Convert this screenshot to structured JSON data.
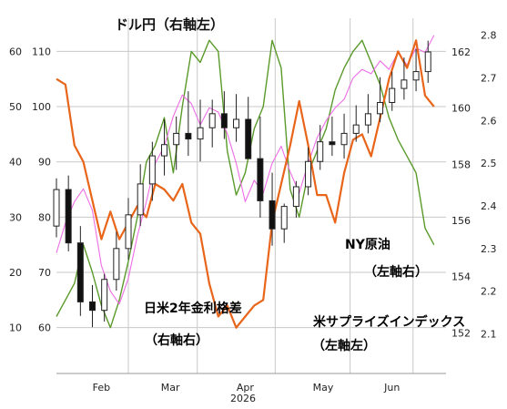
{
  "chart_data": {
    "type": "line",
    "title": "ドル円（右軸左）",
    "x_year_label": "2026",
    "x_tick_labels": [
      "Feb",
      "Mar",
      "Apr",
      "May",
      "Jun"
    ],
    "axes": {
      "left_outer": {
        "ticks": [
          "60",
          "50",
          "40",
          "30",
          "20",
          "10"
        ],
        "ylim": [
          5,
          66
        ]
      },
      "left_inner": {
        "ticks": [
          "110",
          "100",
          "90",
          "80",
          "70",
          "60"
        ],
        "ylim": [
          55,
          116
        ]
      },
      "right_inner": {
        "ticks": [
          "162",
          "160",
          "158",
          "156",
          "154",
          "152"
        ],
        "ylim": [
          151.2,
          163.2
        ]
      },
      "right_outer": {
        "ticks": [
          "2.8",
          "2.7",
          "2.6",
          "2.5",
          "2.4",
          "2.3",
          "2.2",
          "2.1"
        ],
        "ylim": [
          2.05,
          2.84
        ]
      }
    },
    "grid": true,
    "annotations": {
      "wti": {
        "line1": "NY原油",
        "line2": "（左軸右）",
        "color": "#5a9a2a"
      },
      "spread": {
        "line1": "日米2年金利格差",
        "line2": "（右軸右）",
        "color": "#ee6de6"
      },
      "surprise": {
        "line1": "米サプライズインデックス",
        "line2": "（左軸左）",
        "color": "#e8651a"
      }
    },
    "series": [
      {
        "axis": "left_inner",
        "color": "#5a9a2a",
        "x": [
          0,
          3,
          6,
          9,
          12,
          15,
          18,
          21,
          24,
          27,
          30,
          33,
          36,
          39,
          42,
          45,
          48,
          51,
          54,
          57,
          60,
          63,
          66,
          69,
          72,
          75,
          78,
          81,
          84,
          87,
          90,
          93,
          96,
          99,
          102,
          105,
          108,
          111,
          114,
          117,
          120,
          123,
          126
        ],
        "values": [
          62,
          65,
          68,
          75,
          70,
          64,
          60,
          65,
          72,
          80,
          90,
          93,
          98,
          88,
          100,
          110,
          108,
          112,
          110,
          92,
          84,
          88,
          96,
          100,
          112,
          107,
          85,
          80,
          88,
          92,
          96,
          103,
          107,
          110,
          112,
          108,
          104,
          98,
          94,
          91,
          88,
          78,
          75
        ]
      },
      {
        "axis": "right_outer",
        "color": "#ee6de6",
        "x": [
          0,
          3,
          6,
          9,
          12,
          15,
          18,
          21,
          24,
          27,
          30,
          33,
          36,
          39,
          42,
          45,
          48,
          51,
          54,
          57,
          60,
          63,
          66,
          69,
          72,
          75,
          78,
          81,
          84,
          87,
          90,
          93,
          96,
          99,
          102,
          105,
          108,
          111,
          114,
          117,
          120,
          123,
          126
        ],
        "values": [
          2.29,
          2.36,
          2.41,
          2.44,
          2.39,
          2.26,
          2.2,
          2.17,
          2.23,
          2.33,
          2.41,
          2.5,
          2.54,
          2.61,
          2.66,
          2.64,
          2.59,
          2.63,
          2.62,
          2.57,
          2.5,
          2.41,
          2.46,
          2.43,
          2.5,
          2.54,
          2.48,
          2.43,
          2.5,
          2.56,
          2.6,
          2.63,
          2.65,
          2.7,
          2.72,
          2.71,
          2.74,
          2.72,
          2.76,
          2.73,
          2.77,
          2.76,
          2.8
        ]
      },
      {
        "axis": "left_outer",
        "color": "#e8651a",
        "x": [
          0,
          3,
          6,
          9,
          12,
          15,
          18,
          21,
          24,
          27,
          30,
          33,
          36,
          39,
          42,
          45,
          48,
          51,
          54,
          57,
          60,
          63,
          66,
          69,
          72,
          75,
          78,
          81,
          84,
          87,
          90,
          93,
          96,
          99,
          102,
          105,
          108,
          111,
          114,
          117,
          120,
          123,
          126
        ],
        "values": [
          55,
          54,
          43,
          40,
          33,
          26,
          31,
          26,
          29,
          32,
          30,
          36,
          35,
          33,
          36,
          29,
          27,
          18,
          12,
          14,
          10,
          12,
          14,
          15,
          29,
          36,
          43,
          51,
          43,
          34,
          34,
          29,
          38,
          44,
          45,
          41,
          48,
          55,
          60,
          57,
          62,
          52,
          50
        ]
      }
    ],
    "candles": {
      "axis": "right_inner",
      "x": [
        0,
        4,
        8,
        12,
        16,
        20,
        24,
        28,
        32,
        36,
        40,
        44,
        48,
        52,
        56,
        60,
        64,
        68,
        72,
        76,
        80,
        84,
        88,
        92,
        96,
        100,
        104,
        108,
        112,
        116,
        120,
        124
      ],
      "open": [
        155.8,
        157.1,
        155.2,
        153.1,
        152.8,
        153.9,
        155.0,
        156.2,
        157.3,
        158.3,
        158.7,
        159.1,
        158.9,
        159.3,
        159.8,
        159.3,
        159.6,
        158.2,
        156.7,
        155.7,
        156.5,
        157.2,
        158.1,
        158.8,
        158.7,
        159.1,
        159.4,
        159.8,
        160.2,
        160.7,
        161.0,
        161.3
      ],
      "high": [
        157.5,
        157.6,
        155.8,
        153.7,
        154.1,
        155.6,
        156.8,
        158.0,
        158.8,
        159.6,
        159.7,
        160.6,
        160.3,
        160.3,
        160.6,
        160.5,
        160.4,
        159.7,
        157.7,
        156.6,
        157.4,
        158.6,
        159.4,
        159.7,
        159.8,
        160.1,
        160.5,
        161.1,
        161.3,
        161.8,
        162.1,
        162.4
      ],
      "low": [
        155.4,
        154.9,
        152.6,
        152.2,
        152.4,
        153.5,
        154.6,
        155.8,
        156.7,
        157.6,
        157.8,
        158.3,
        158.1,
        158.6,
        158.9,
        158.8,
        158.4,
        156.1,
        155.1,
        155.2,
        156.1,
        156.9,
        157.8,
        158.3,
        158.2,
        158.8,
        159.1,
        159.5,
        159.9,
        160.3,
        160.6,
        160.9
      ],
      "close": [
        157.1,
        155.2,
        153.1,
        152.8,
        153.9,
        155.0,
        156.2,
        157.3,
        158.3,
        158.7,
        159.1,
        158.9,
        159.3,
        159.8,
        159.3,
        159.6,
        158.2,
        156.7,
        155.7,
        156.5,
        157.2,
        158.1,
        158.8,
        158.7,
        159.1,
        159.4,
        159.8,
        160.2,
        160.7,
        161.0,
        161.3,
        162.0
      ]
    }
  }
}
